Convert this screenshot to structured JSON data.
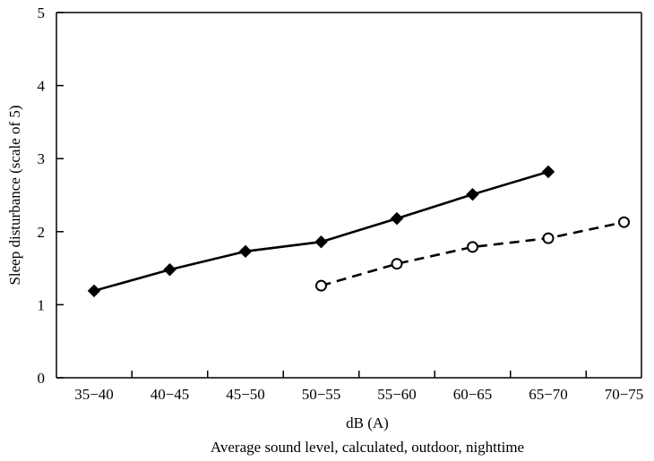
{
  "chart_data": {
    "type": "line",
    "title": "",
    "xlabel": "dB (A)",
    "xlabel_sub": "Average sound level, calculated, outdoor, nighttime",
    "ylabel": "Sleep disturbance (scale of 5)",
    "categories": [
      "35−40",
      "40−45",
      "45−50",
      "50−55",
      "55−60",
      "60−65",
      "65−70",
      "70−75"
    ],
    "ylim": [
      0,
      5
    ],
    "yticks": [
      0,
      1,
      2,
      3,
      4,
      5
    ],
    "grid": false,
    "legend": "none",
    "series": [
      {
        "line_style": "solid",
        "marker": "filled-diamond",
        "color": "#000000",
        "values": [
          1.19,
          1.48,
          1.73,
          1.86,
          2.18,
          2.51,
          2.82,
          null
        ]
      },
      {
        "line_style": "dashed",
        "marker": "open-circle",
        "color": "#000000",
        "values": [
          null,
          null,
          null,
          1.26,
          1.56,
          1.79,
          1.91,
          2.13
        ]
      }
    ]
  }
}
